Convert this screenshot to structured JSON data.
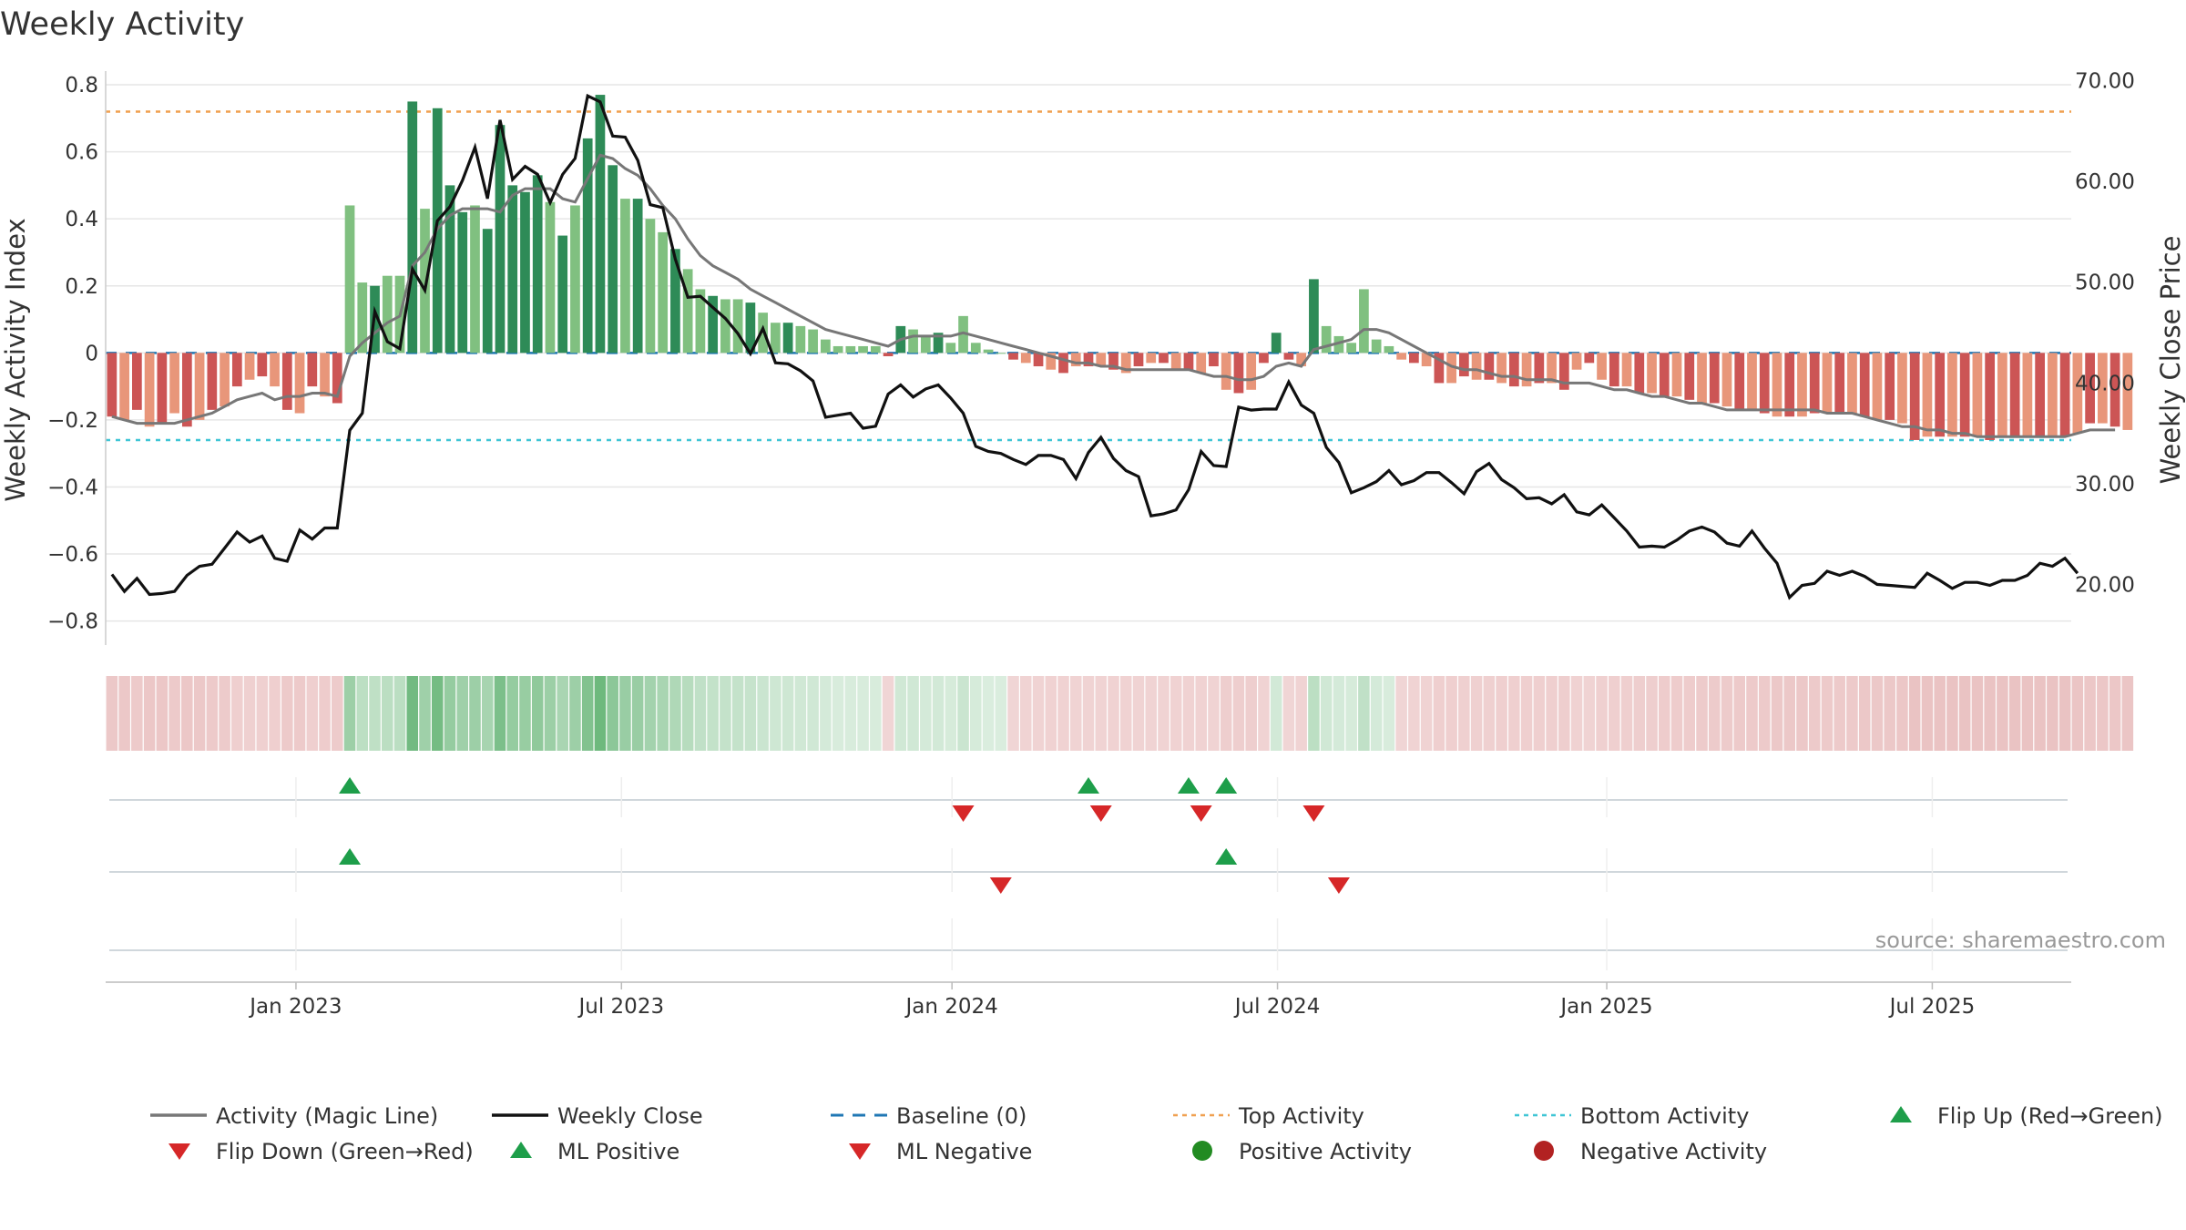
{
  "chart_data": {
    "type": "bar",
    "title": "Weekly Activity",
    "ylabel": "Weekly Activity Index",
    "y2label": "Weekly Close Price",
    "ylim": [
      -0.85,
      0.83
    ],
    "y2lim": [
      14.7,
      70.6
    ],
    "yticks": [
      0.8,
      0.6,
      0.4,
      0.2,
      0,
      -0.2,
      -0.4,
      -0.6,
      -0.8
    ],
    "ytick_labels": [
      "0.8",
      "0.6",
      "0.4",
      "0.2",
      "0",
      "−0.2",
      "−0.4",
      "−0.6",
      "−0.8"
    ],
    "y2ticks": [
      70,
      60,
      50,
      40,
      30,
      20
    ],
    "y2tick_labels": [
      "70.00",
      "60.00",
      "50.00",
      "40.00",
      "30.00",
      "20.00"
    ],
    "x_range": [
      0,
      157
    ],
    "x_ticks": [
      {
        "x": 15.2,
        "label": "Jan 2023"
      },
      {
        "x": 41.2,
        "label": "Jul 2023"
      },
      {
        "x": 67.6,
        "label": "Jan 2024"
      },
      {
        "x": 93.6,
        "label": "Jul 2024"
      },
      {
        "x": 119.9,
        "label": "Jan 2025"
      },
      {
        "x": 145.9,
        "label": "Jul 2025"
      }
    ],
    "top_activity": 0.72,
    "bottom_activity": -0.26,
    "colors": {
      "pos_strong": "#2e8b57",
      "pos_weak": "#80c080",
      "neg_strong": "#cc5555",
      "neg_weak": "#e8967a",
      "magic": "#777777",
      "close": "#111111",
      "baseline": "#1f77b4",
      "top": "#f0a050",
      "bottom": "#3ec5d5",
      "flip_up": "#1e9e4a",
      "flip_down": "#d62728",
      "pos_dot": "#228b22",
      "neg_dot": "#b22222",
      "grid": "#e6e6e6",
      "band_line": "#d0d7dc",
      "band_tick": "#eeeeee"
    },
    "series": [
      {
        "name": "Weekly Activity",
        "values": [
          -0.19,
          -0.2,
          -0.17,
          -0.22,
          -0.21,
          -0.18,
          -0.22,
          -0.2,
          -0.17,
          -0.16,
          -0.1,
          -0.08,
          -0.07,
          -0.1,
          -0.17,
          -0.18,
          -0.1,
          -0.13,
          -0.15,
          0.44,
          0.21,
          0.2,
          0.23,
          0.23,
          0.75,
          0.43,
          0.73,
          0.5,
          0.42,
          0.44,
          0.37,
          0.68,
          0.5,
          0.48,
          0.53,
          0.45,
          0.35,
          0.44,
          0.64,
          0.77,
          0.56,
          0.46,
          0.46,
          0.4,
          0.36,
          0.31,
          0.25,
          0.19,
          0.17,
          0.16,
          0.16,
          0.15,
          0.12,
          0.09,
          0.09,
          0.08,
          0.07,
          0.04,
          0.02,
          0.02,
          0.02,
          0.02,
          -0.01,
          0.08,
          0.07,
          0.05,
          0.06,
          0.03,
          0.11,
          0.03,
          0.01,
          0.0,
          -0.02,
          -0.03,
          -0.04,
          -0.05,
          -0.06,
          -0.04,
          -0.04,
          -0.04,
          -0.05,
          -0.06,
          -0.04,
          -0.03,
          -0.03,
          -0.05,
          -0.05,
          -0.06,
          -0.04,
          -0.11,
          -0.12,
          -0.11,
          -0.03,
          0.06,
          -0.02,
          -0.04,
          0.22,
          0.08,
          0.05,
          0.03,
          0.19,
          0.04,
          0.02,
          -0.02,
          -0.03,
          -0.04,
          -0.09,
          -0.09,
          -0.07,
          -0.08,
          -0.08,
          -0.09,
          -0.1,
          -0.1,
          -0.09,
          -0.09,
          -0.11,
          -0.05,
          -0.03,
          -0.08,
          -0.1,
          -0.1,
          -0.12,
          -0.12,
          -0.13,
          -0.13,
          -0.14,
          -0.15,
          -0.15,
          -0.16,
          -0.17,
          -0.17,
          -0.18,
          -0.19,
          -0.19,
          -0.19,
          -0.18,
          -0.18,
          -0.18,
          -0.18,
          -0.19,
          -0.2,
          -0.2,
          -0.21,
          -0.26,
          -0.25,
          -0.25,
          -0.25,
          -0.25,
          -0.25,
          -0.26,
          -0.25,
          -0.25,
          -0.25,
          -0.25,
          -0.25,
          -0.25,
          -0.24,
          -0.21,
          -0.21,
          -0.22,
          -0.23
        ]
      },
      {
        "name": "Activity (Magic Line)",
        "values": [
          -0.19,
          -0.2,
          -0.21,
          -0.21,
          -0.21,
          -0.21,
          -0.2,
          -0.19,
          -0.18,
          -0.16,
          -0.14,
          -0.13,
          -0.12,
          -0.14,
          -0.13,
          -0.13,
          -0.12,
          -0.12,
          -0.13,
          -0.01,
          0.03,
          0.06,
          0.09,
          0.11,
          0.26,
          0.3,
          0.37,
          0.41,
          0.43,
          0.43,
          0.43,
          0.42,
          0.47,
          0.49,
          0.49,
          0.49,
          0.46,
          0.45,
          0.52,
          0.59,
          0.58,
          0.55,
          0.53,
          0.49,
          0.44,
          0.4,
          0.34,
          0.29,
          0.26,
          0.24,
          0.22,
          0.19,
          0.17,
          0.15,
          0.13,
          0.11,
          0.09,
          0.07,
          0.06,
          0.05,
          0.04,
          0.03,
          0.02,
          0.04,
          0.05,
          0.05,
          0.05,
          0.05,
          0.06,
          0.05,
          0.04,
          0.03,
          0.02,
          0.01,
          0.0,
          -0.01,
          -0.02,
          -0.03,
          -0.03,
          -0.04,
          -0.04,
          -0.05,
          -0.05,
          -0.05,
          -0.05,
          -0.05,
          -0.05,
          -0.06,
          -0.07,
          -0.07,
          -0.08,
          -0.08,
          -0.07,
          -0.04,
          -0.03,
          -0.04,
          0.01,
          0.02,
          0.03,
          0.04,
          0.07,
          0.07,
          0.06,
          0.04,
          0.02,
          0.0,
          -0.02,
          -0.04,
          -0.05,
          -0.05,
          -0.06,
          -0.07,
          -0.07,
          -0.08,
          -0.08,
          -0.08,
          -0.09,
          -0.09,
          -0.09,
          -0.1,
          -0.11,
          -0.11,
          -0.12,
          -0.13,
          -0.13,
          -0.14,
          -0.15,
          -0.15,
          -0.16,
          -0.17,
          -0.17,
          -0.17,
          -0.17,
          -0.17,
          -0.17,
          -0.17,
          -0.17,
          -0.18,
          -0.18,
          -0.18,
          -0.19,
          -0.2,
          -0.21,
          -0.22,
          -0.22,
          -0.23,
          -0.23,
          -0.24,
          -0.24,
          -0.25,
          -0.25,
          -0.25,
          -0.25,
          -0.25,
          -0.25,
          -0.25,
          -0.25,
          -0.24,
          -0.23,
          -0.23,
          -0.23
        ]
      },
      {
        "name": "Weekly Close",
        "values": [
          21.0,
          19.3,
          20.6,
          19.0,
          19.1,
          19.3,
          20.9,
          21.8,
          22.0,
          23.6,
          25.2,
          24.2,
          24.8,
          22.6,
          22.3,
          25.4,
          24.5,
          25.6,
          25.6,
          35.3,
          37.0,
          47.1,
          44.1,
          43.4,
          51.3,
          49.2,
          56.1,
          57.5,
          60.1,
          63.4,
          58.3,
          66.1,
          60.2,
          61.5,
          60.7,
          57.9,
          60.7,
          62.3,
          68.5,
          67.9,
          64.5,
          64.4,
          62.1,
          57.7,
          57.4,
          52.3,
          48.5,
          48.6,
          47.5,
          46.4,
          44.9,
          42.9,
          45.4,
          42.0,
          41.9,
          41.2,
          40.2,
          36.6,
          36.8,
          37.0,
          35.5,
          35.7,
          38.9,
          39.8,
          38.6,
          39.4,
          39.8,
          38.5,
          37.0,
          33.7,
          33.2,
          33.0,
          32.4,
          31.9,
          32.8,
          32.8,
          32.4,
          30.5,
          33.1,
          34.6,
          32.5,
          31.3,
          30.7,
          26.8,
          27.0,
          27.4,
          29.4,
          33.2,
          31.8,
          31.7,
          37.6,
          37.3,
          37.4,
          37.4,
          40.1,
          37.8,
          37.0,
          33.6,
          32.1,
          29.1,
          29.6,
          30.2,
          31.3,
          29.9,
          30.3,
          31.1,
          31.1,
          30.1,
          29.0,
          31.2,
          32.0,
          30.4,
          29.6,
          28.5,
          28.6,
          28.0,
          28.9,
          27.2,
          26.9,
          27.9,
          26.6,
          25.3,
          23.7,
          23.8,
          23.7,
          24.4,
          25.3,
          25.7,
          25.2,
          24.1,
          23.8,
          25.3,
          23.6,
          22.1,
          18.7,
          19.9,
          20.1,
          21.3,
          20.9,
          21.3,
          20.8,
          20.0,
          19.9,
          19.8,
          19.7,
          21.1,
          20.4,
          19.6,
          20.2,
          20.2,
          19.9,
          20.4,
          20.4,
          20.9,
          22.1,
          21.8,
          22.6,
          21.1
        ]
      }
    ],
    "flip_up": [
      19,
      78,
      86,
      89
    ],
    "flip_down": [
      68,
      79,
      87,
      96
    ],
    "ml_positive": [
      19,
      89
    ],
    "ml_negative": [
      71,
      98
    ],
    "legend": [
      "Activity (Magic Line)",
      "Weekly Close",
      "Baseline (0)",
      "Top Activity",
      "Bottom Activity",
      "Flip Up (Red→Green)",
      "Flip Down (Green→Red)",
      "ML Positive",
      "ML Negative",
      "Positive Activity",
      "Negative Activity"
    ],
    "source": "source: sharemaestro.com"
  }
}
